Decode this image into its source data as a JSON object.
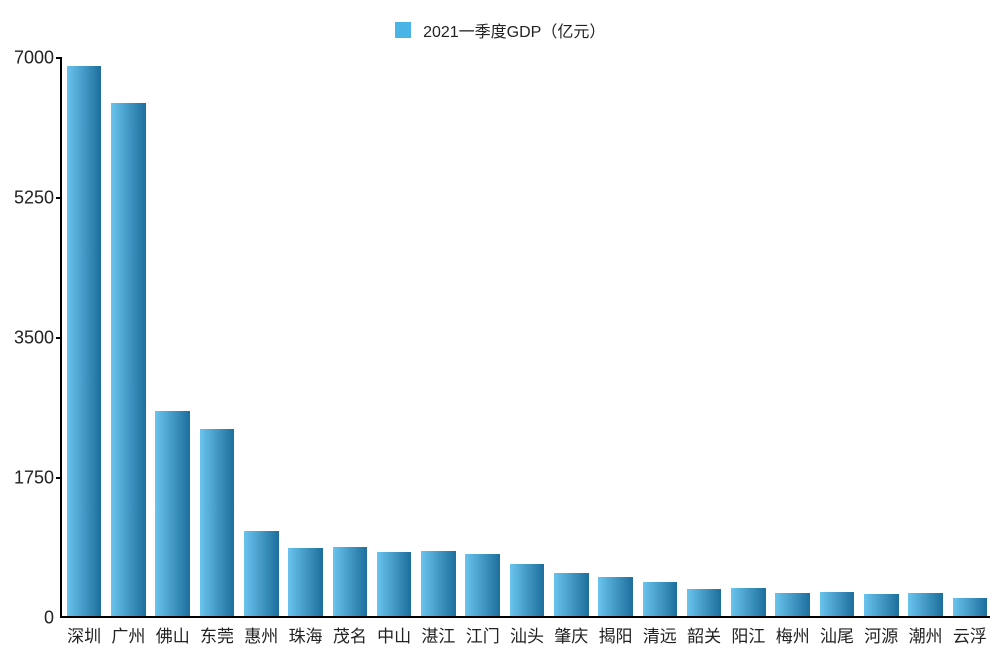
{
  "chart": {
    "type": "bar",
    "legend": {
      "label": "2021一季度GDP（亿元）",
      "swatch_color": "#4bb4e6"
    },
    "background_color": "#ffffff",
    "axis_color": "#000000",
    "ylim": [
      0,
      7000
    ],
    "yticks": [
      0,
      1750,
      3500,
      5250,
      7000
    ],
    "ytick_fontsize": 18,
    "xlabel_fontsize": 17,
    "legend_fontsize": 16,
    "bar_gradient": {
      "from": "#69c4ee",
      "to": "#1d6e9c"
    },
    "bar_width_ratio": 0.78,
    "categories": [
      "深圳",
      "广州",
      "佛山",
      "东莞",
      "惠州",
      "珠海",
      "茂名",
      "中山",
      "湛江",
      "江门",
      "汕头",
      "肇庆",
      "揭阳",
      "清远",
      "韶关",
      "阳江",
      "梅州",
      "汕尾",
      "河源",
      "潮州",
      "云浮"
    ],
    "values": [
      6870,
      6410,
      2560,
      2340,
      1060,
      850,
      860,
      800,
      810,
      780,
      650,
      540,
      490,
      430,
      340,
      350,
      290,
      300,
      280,
      290,
      230
    ]
  }
}
